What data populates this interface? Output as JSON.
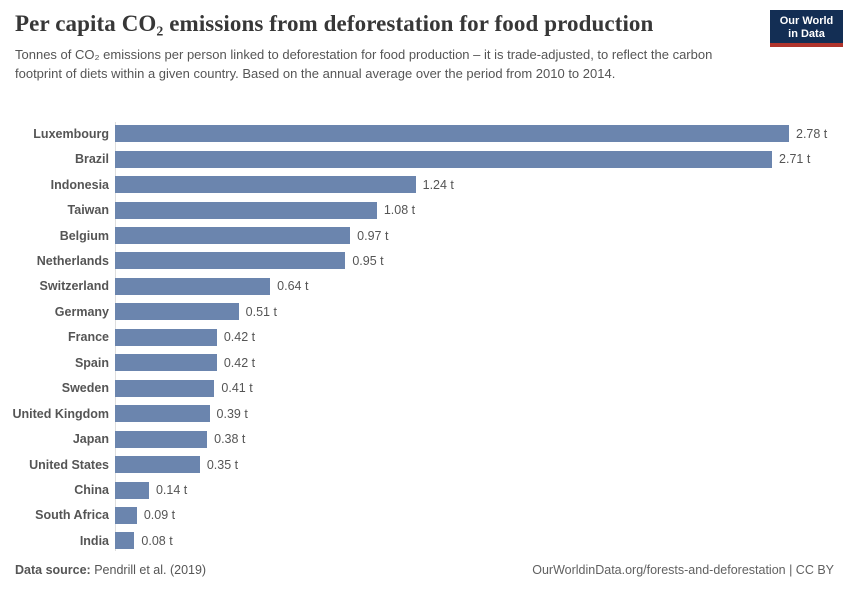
{
  "header": {
    "title": "Per capita CO₂ emissions from deforestation for food production",
    "subtitle": "Tonnes of CO₂ emissions per person linked to deforestation for food production – it is trade-adjusted, to reflect the carbon footprint of diets within a given country. Based on the annual average over the period from 2010 to 2014.",
    "logo": {
      "line1": "Our World",
      "line2": "in Data",
      "bg_color": "#132e54",
      "stripe_color": "#b0342c"
    }
  },
  "chart_data": {
    "type": "bar",
    "orientation": "horizontal",
    "title": "Per capita CO₂ emissions from deforestation for food production",
    "unit": "t",
    "xlim": [
      0,
      2.78
    ],
    "grid": false,
    "categories": [
      "Luxembourg",
      "Brazil",
      "Indonesia",
      "Taiwan",
      "Belgium",
      "Netherlands",
      "Switzerland",
      "Germany",
      "France",
      "Spain",
      "Sweden",
      "United Kingdom",
      "Japan",
      "United States",
      "China",
      "South Africa",
      "India"
    ],
    "values": [
      2.78,
      2.71,
      1.24,
      1.08,
      0.97,
      0.95,
      0.64,
      0.51,
      0.42,
      0.42,
      0.41,
      0.39,
      0.38,
      0.35,
      0.14,
      0.09,
      0.08
    ],
    "value_labels": [
      "2.78 t",
      "2.71 t",
      "1.24 t",
      "1.08 t",
      "0.97 t",
      "0.95 t",
      "0.64 t",
      "0.51 t",
      "0.42 t",
      "0.42 t",
      "0.41 t",
      "0.39 t",
      "0.38 t",
      "0.35 t",
      "0.14 t",
      "0.09 t",
      "0.08 t"
    ],
    "bar_color": "#6b85ae",
    "axis_color": "#dedede",
    "label_color": "#555555"
  },
  "footer": {
    "data_source_label": "Data source:",
    "data_source_value": "Pendrill et al. (2019)",
    "right_text": "OurWorldinData.org/forests-and-deforestation | CC BY"
  }
}
